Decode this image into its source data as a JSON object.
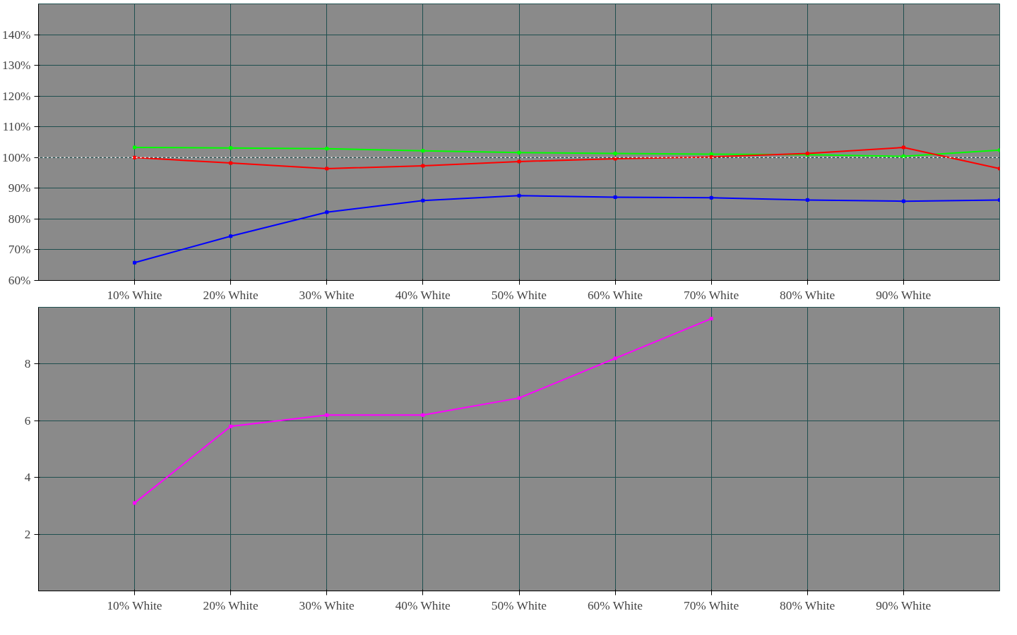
{
  "chart_data": [
    {
      "type": "line",
      "x": [
        10,
        20,
        30,
        40,
        50,
        60,
        70,
        80,
        90,
        100
      ],
      "xlim": [
        0,
        100
      ],
      "xticks": [
        {
          "value": 10,
          "label": "10% White"
        },
        {
          "value": 20,
          "label": "20% White"
        },
        {
          "value": 30,
          "label": "30% White"
        },
        {
          "value": 40,
          "label": "40% White"
        },
        {
          "value": 50,
          "label": "50% White"
        },
        {
          "value": 60,
          "label": "60% White"
        },
        {
          "value": 70,
          "label": "70% White"
        },
        {
          "value": 80,
          "label": "80% White"
        },
        {
          "value": 90,
          "label": "90% White"
        }
      ],
      "ylim": [
        60,
        150
      ],
      "yticks": [
        {
          "value": 60,
          "label": "60%"
        },
        {
          "value": 70,
          "label": "70%"
        },
        {
          "value": 80,
          "label": "80%"
        },
        {
          "value": 90,
          "label": "90%"
        },
        {
          "value": 100,
          "label": "100%"
        },
        {
          "value": 110,
          "label": "110%"
        },
        {
          "value": 120,
          "label": "120%"
        },
        {
          "value": 130,
          "label": "130%"
        },
        {
          "value": 140,
          "label": "140%"
        }
      ],
      "series": [
        {
          "color": "#00ff00",
          "values": [
            103.3,
            103.1,
            102.9,
            102.2,
            101.6,
            101.3,
            101.1,
            100.9,
            100.4,
            102.4
          ]
        },
        {
          "color": "#ff0000",
          "values": [
            100.0,
            98.2,
            96.4,
            97.3,
            98.7,
            99.6,
            100.2,
            101.3,
            103.3,
            96.4
          ]
        },
        {
          "color": "#0000ff",
          "values": [
            65.8,
            74.4,
            82.2,
            86.0,
            87.6,
            87.1,
            86.9,
            86.2,
            85.8,
            86.2
          ]
        }
      ],
      "ref_lines": [
        {
          "axis": "y",
          "value": 100,
          "color": "#ffffff",
          "line_style": "dotted"
        }
      ],
      "marker": "square",
      "line_style": "solid",
      "grid": true
    },
    {
      "type": "line",
      "x": [
        10,
        20,
        30,
        40,
        50,
        60,
        70
      ],
      "xlim": [
        0,
        100
      ],
      "xticks": [
        {
          "value": 10,
          "label": "10% White"
        },
        {
          "value": 20,
          "label": "20% White"
        },
        {
          "value": 30,
          "label": "30% White"
        },
        {
          "value": 40,
          "label": "40% White"
        },
        {
          "value": 50,
          "label": "50% White"
        },
        {
          "value": 60,
          "label": "60% White"
        },
        {
          "value": 70,
          "label": "70% White"
        },
        {
          "value": 80,
          "label": "80% White"
        },
        {
          "value": 90,
          "label": "90% White"
        }
      ],
      "ylim": [
        0,
        10
      ],
      "yticks": [
        2,
        4,
        6,
        8
      ],
      "series": [
        {
          "color": "#ff00ff",
          "values": [
            3.1,
            5.8,
            6.2,
            6.2,
            6.8,
            8.2,
            9.6
          ]
        }
      ],
      "marker": "square",
      "line_style": "solid",
      "grid": true
    }
  ]
}
